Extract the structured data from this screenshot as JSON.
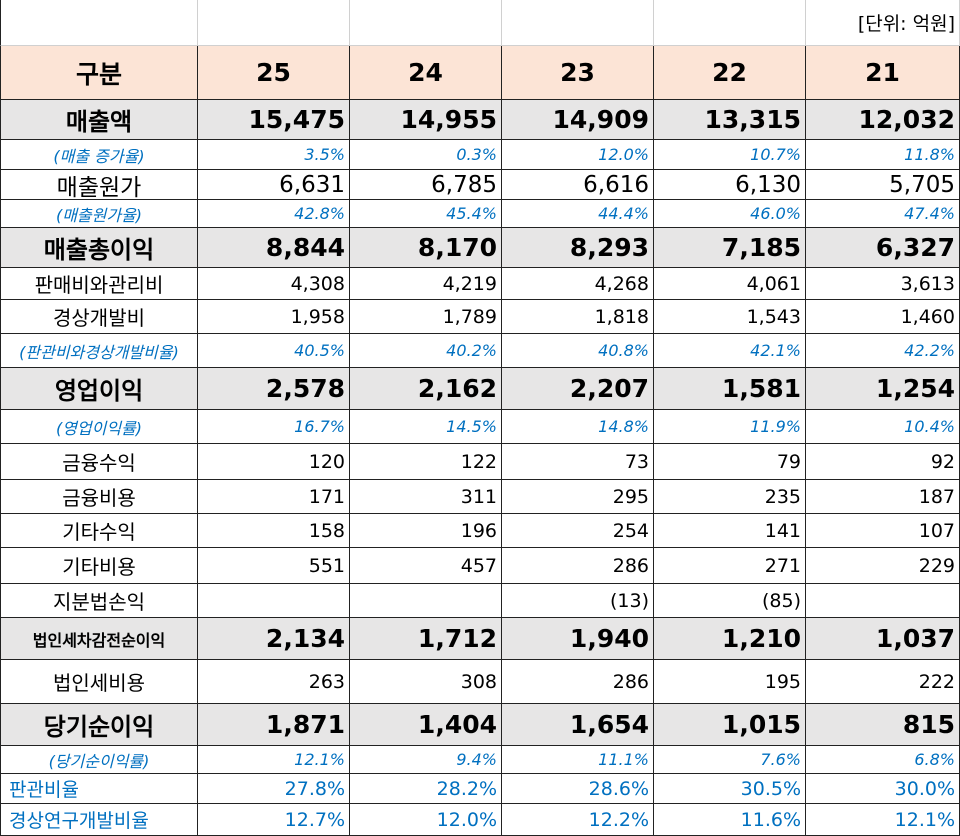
{
  "table": {
    "unit": "[단위: 억원]",
    "header": [
      "구분",
      "25",
      "24",
      "23",
      "22",
      "21"
    ],
    "rows": [
      [
        "매출액",
        "15,475",
        "14,955",
        "14,909",
        "13,315",
        "12,032"
      ],
      [
        "(매출 증가율)",
        "3.5%",
        "0.3%",
        "12.0%",
        "10.7%",
        "11.8%"
      ],
      [
        "매출원가",
        "6,631",
        "6,785",
        "6,616",
        "6,130",
        "5,705"
      ],
      [
        "(매출원가율)",
        "42.8%",
        "45.4%",
        "44.4%",
        "46.0%",
        "47.4%"
      ],
      [
        "매출총이익",
        "8,844",
        "8,170",
        "8,293",
        "7,185",
        "6,327"
      ],
      [
        "판매비와관리비",
        "4,308",
        "4,219",
        "4,268",
        "4,061",
        "3,613"
      ],
      [
        "경상개발비",
        "1,958",
        "1,789",
        "1,818",
        "1,543",
        "1,460"
      ],
      [
        "(판관비와경상개발비율)",
        "40.5%",
        "40.2%",
        "40.8%",
        "42.1%",
        "42.2%"
      ],
      [
        "영업이익",
        "2,578",
        "2,162",
        "2,207",
        "1,581",
        "1,254"
      ],
      [
        "(영업이익률)",
        "16.7%",
        "14.5%",
        "14.8%",
        "11.9%",
        "10.4%"
      ],
      [
        "금융수익",
        "120",
        "122",
        "73",
        "79",
        "92"
      ],
      [
        "금융비용",
        "171",
        "311",
        "295",
        "235",
        "187"
      ],
      [
        "기타수익",
        "158",
        "196",
        "254",
        "141",
        "107"
      ],
      [
        "기타비용",
        "551",
        "457",
        "286",
        "271",
        "229"
      ],
      [
        "지분법손익",
        null,
        null,
        "(13)",
        "(85)",
        null
      ],
      [
        "법인세차감전순이익",
        "2,134",
        "1,712",
        "1,940",
        "1,210",
        "1,037"
      ],
      [
        "법인세비용",
        "263",
        "308",
        "286",
        "195",
        "222"
      ],
      [
        "당기순이익",
        "1,871",
        "1,404",
        "1,654",
        "1,015",
        "815"
      ],
      [
        "(당기순이익률)",
        "12.1%",
        "9.4%",
        "11.1%",
        "7.6%",
        "6.8%"
      ],
      [
        "판관비율",
        "27.8%",
        "28.2%",
        "28.6%",
        "30.5%",
        "30.0%"
      ],
      [
        "경상연구개발비율",
        "12.7%",
        "12.0%",
        "12.2%",
        "11.6%",
        "12.1%"
      ]
    ]
  }
}
